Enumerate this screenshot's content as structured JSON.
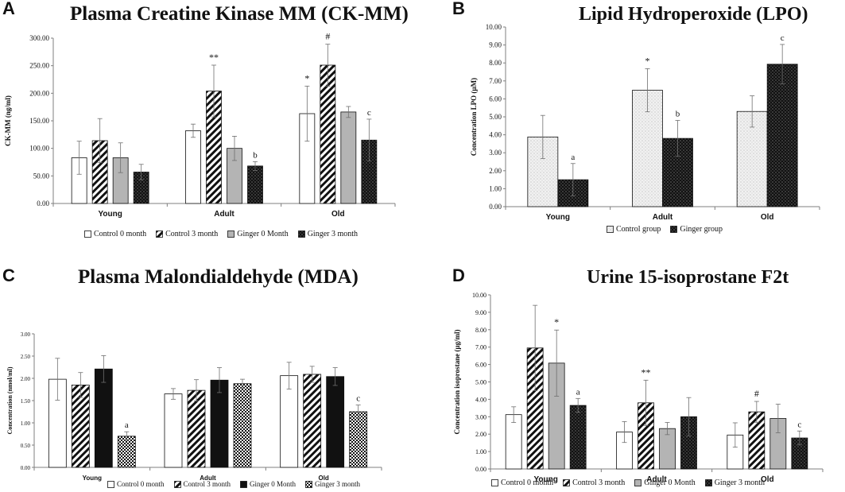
{
  "colors": {
    "axis": "#7f7f7f",
    "text": "#111111",
    "dark": "#111111",
    "grey": "#b4b4b4",
    "dot_light": "#f1f1f1"
  },
  "chart_data": [
    {
      "id": "A",
      "panel_label": "A",
      "type": "bar",
      "title": "Plasma Creatine Kinase MM (CK-MM)",
      "ylabel": "CK-MM (ng/ml)",
      "xlabel": "",
      "ylim": [
        0,
        300
      ],
      "ytick_step": 50,
      "tick_decimals": 2,
      "grid": false,
      "legend_position": "bottom",
      "categories": [
        "Young",
        "Adult",
        "Old"
      ],
      "series": [
        {
          "name": "Control 0 month",
          "pattern": "white",
          "values": [
            83,
            132,
            163
          ],
          "errors": [
            30,
            12,
            50
          ],
          "labels": [
            "",
            "",
            "*"
          ]
        },
        {
          "name": "Control 3 month",
          "pattern": "diag",
          "values": [
            114,
            204,
            251
          ],
          "errors": [
            40,
            47,
            38
          ],
          "labels": [
            "",
            "**",
            "#"
          ]
        },
        {
          "name": "Ginger 0 Month",
          "pattern": "grey",
          "values": [
            83,
            100,
            166
          ],
          "errors": [
            27,
            22,
            10
          ],
          "labels": [
            "",
            "",
            ""
          ]
        },
        {
          "name": "Ginger 3 month",
          "pattern": "darkdots",
          "values": [
            57,
            68,
            115
          ],
          "errors": [
            14,
            8,
            38
          ],
          "labels": [
            "",
            "b",
            "c"
          ]
        }
      ]
    },
    {
      "id": "B",
      "panel_label": "B",
      "type": "bar",
      "title": "Lipid Hydroperoxide (LPO)",
      "ylabel": "Concentration LPO  (µM)",
      "xlabel": "",
      "ylim": [
        0,
        10
      ],
      "ytick_step": 1,
      "tick_decimals": 2,
      "grid": false,
      "legend_position": "bottom",
      "categories": [
        "Young",
        "Adult",
        "Old"
      ],
      "series": [
        {
          "name": "Control group",
          "pattern": "lightdots",
          "values": [
            3.88,
            6.48,
            5.3
          ],
          "errors": [
            1.2,
            1.2,
            0.87
          ],
          "labels": [
            "",
            "*",
            ""
          ]
        },
        {
          "name": "Ginger group",
          "pattern": "darkdots",
          "values": [
            1.5,
            3.8,
            7.93
          ],
          "errors": [
            0.9,
            1.0,
            1.1
          ],
          "labels": [
            "a",
            "b",
            "c"
          ]
        }
      ]
    },
    {
      "id": "C",
      "panel_label": "C",
      "type": "bar",
      "title": "Plasma Malondialdehyde (MDA)",
      "ylabel": "Concentration (nmol/ml)",
      "xlabel": "",
      "ylim": [
        0,
        3
      ],
      "ytick_step": 0.5,
      "tick_decimals": 2,
      "grid": false,
      "legend_position": "bottom",
      "categories": [
        "Young",
        "Adult",
        "Old"
      ],
      "series": [
        {
          "name": "Control 0 month",
          "pattern": "white",
          "values": [
            1.98,
            1.65,
            2.06
          ],
          "errors": [
            0.47,
            0.12,
            0.3
          ],
          "labels": [
            "",
            "",
            ""
          ]
        },
        {
          "name": "Control 3 month",
          "pattern": "diag",
          "values": [
            1.85,
            1.73,
            2.09
          ],
          "errors": [
            0.28,
            0.24,
            0.18
          ],
          "labels": [
            "",
            "",
            ""
          ]
        },
        {
          "name": "Ginger 0 Month",
          "pattern": "black",
          "values": [
            2.21,
            1.96,
            2.04
          ],
          "errors": [
            0.3,
            0.28,
            0.2
          ],
          "labels": [
            "",
            "",
            ""
          ]
        },
        {
          "name": "Ginger 3 month",
          "pattern": "checker",
          "values": [
            0.7,
            1.88,
            1.25
          ],
          "errors": [
            0.1,
            0.1,
            0.15
          ],
          "labels": [
            "a",
            "",
            "c"
          ]
        }
      ]
    },
    {
      "id": "D",
      "panel_label": "D",
      "type": "bar",
      "title": "Urine 15-isoprostane F2t",
      "ylabel": "Concentration isoprostane (µg/ml)",
      "xlabel": "",
      "ylim": [
        0,
        10
      ],
      "ytick_step": 1,
      "tick_decimals": 2,
      "grid": false,
      "legend_position": "bottom",
      "categories": [
        "Young",
        "Adult",
        "Old"
      ],
      "series": [
        {
          "name": "Control 0 month",
          "pattern": "white",
          "values": [
            3.12,
            2.12,
            1.95
          ],
          "errors": [
            0.45,
            0.6,
            0.7
          ],
          "labels": [
            "",
            "",
            ""
          ]
        },
        {
          "name": "Control 3 month",
          "pattern": "diag",
          "values": [
            6.95,
            3.8,
            3.28
          ],
          "errors": [
            2.45,
            1.3,
            0.6
          ],
          "labels": [
            "",
            "**",
            "#"
          ]
        },
        {
          "name": "Ginger 0 Month",
          "pattern": "grey",
          "values": [
            6.08,
            2.32,
            2.9
          ],
          "errors": [
            1.9,
            0.35,
            0.82
          ],
          "labels": [
            "*",
            "",
            ""
          ]
        },
        {
          "name": "Ginger 3 month",
          "pattern": "darkdots",
          "values": [
            3.65,
            3.0,
            1.78
          ],
          "errors": [
            0.4,
            1.1,
            0.4
          ],
          "labels": [
            "a",
            "",
            "c"
          ]
        }
      ]
    }
  ]
}
